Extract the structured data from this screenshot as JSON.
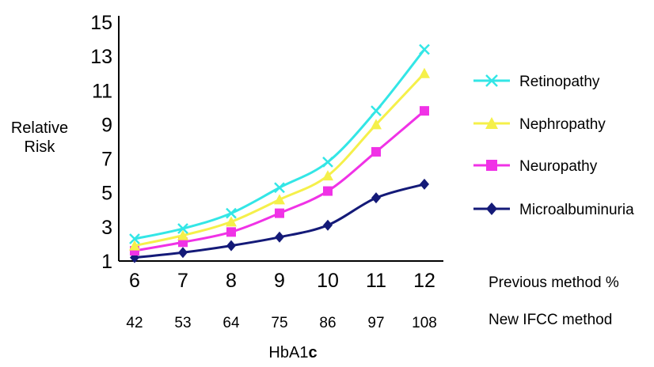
{
  "chart_data": {
    "type": "line",
    "ylabel_lines": [
      "Relative",
      "Risk"
    ],
    "xlabel_main": "HbA1",
    "xlabel_suffix": "c",
    "ylim": [
      1,
      15
    ],
    "yticks": [
      1,
      3,
      5,
      7,
      9,
      11,
      13,
      15
    ],
    "x": [
      6,
      7,
      8,
      9,
      10,
      11,
      12
    ],
    "x_secondary": [
      42,
      53,
      64,
      75,
      86,
      97,
      108
    ],
    "x_primary_label": "Previous method %",
    "x_secondary_label": "New IFCC method",
    "legend_position": "right",
    "series": [
      {
        "name": "Retinopathy",
        "color": "#33e6e6",
        "marker": "x",
        "values": [
          2.3,
          2.9,
          3.8,
          5.3,
          6.8,
          9.8,
          13.4
        ]
      },
      {
        "name": "Nephropathy",
        "color": "#f5f04a",
        "marker": "triangle",
        "values": [
          1.9,
          2.5,
          3.3,
          4.6,
          6.0,
          9.0,
          12.0
        ]
      },
      {
        "name": "Neuropathy",
        "color": "#f032e6",
        "marker": "square",
        "values": [
          1.6,
          2.1,
          2.7,
          3.8,
          5.1,
          7.4,
          9.8
        ]
      },
      {
        "name": "Microalbuminuria",
        "color": "#141a78",
        "marker": "diamond",
        "values": [
          1.2,
          1.5,
          1.9,
          2.4,
          3.1,
          4.7,
          5.5
        ]
      }
    ]
  }
}
